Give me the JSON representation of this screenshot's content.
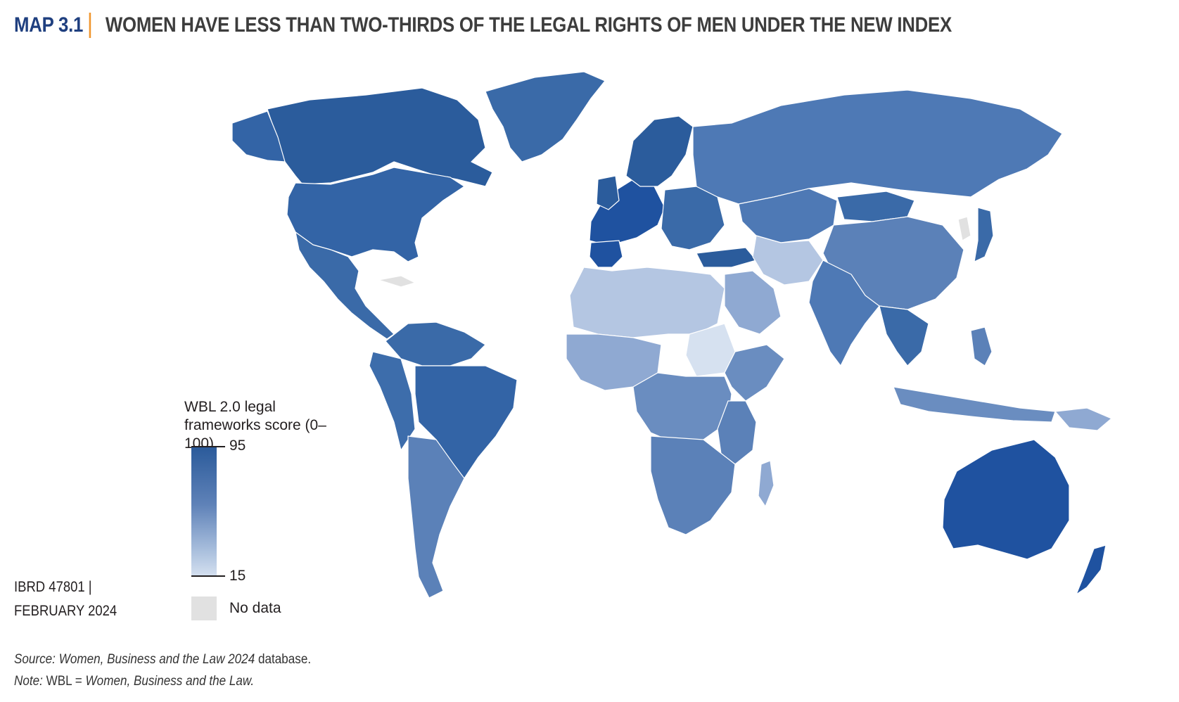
{
  "header": {
    "map_label": "MAP 3.1",
    "title": "WOMEN HAVE LESS THAN TWO-THIRDS OF THE LEGAL RIGHTS OF MEN UNDER THE NEW INDEX"
  },
  "legend": {
    "title_line1": "WBL 2.0 legal",
    "title_line2": "frameworks score (0–100)",
    "max_label": "95",
    "min_label": "15",
    "no_data_label": "No data"
  },
  "id_block": {
    "line1": "IBRD 47801 |",
    "line2": "FEBRUARY 2024"
  },
  "footer": {
    "source_prefix": "Source:",
    "source_italic": "Women, Business and the Law 2024",
    "source_suffix": "database.",
    "note_prefix": "Note:",
    "note_plain": "WBL =",
    "note_italic": "Women, Business and the Law."
  },
  "colors": {
    "title_accent": "#f0962e",
    "map_label": "#1f3f7f",
    "scale_high": "#2a5a9a",
    "scale_low": "#d6e1f0",
    "no_data": "#e1e1e1"
  }
}
